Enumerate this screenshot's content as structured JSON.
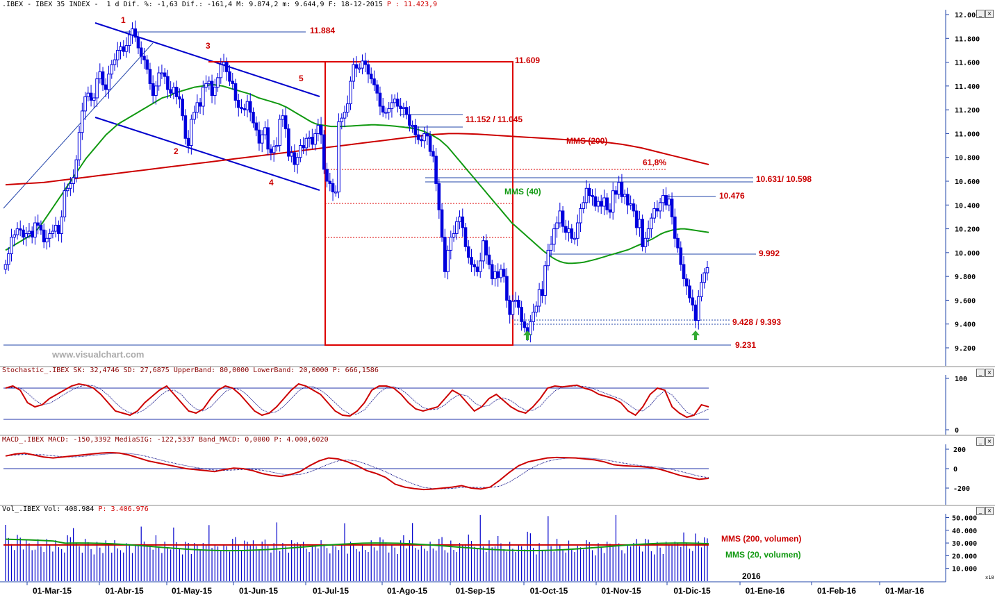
{
  "header": {
    "main": ".IBEX - IBEX 35 INDEX -  1 d Dif. %: -1,63 Dif.: -161,4 M: 9.874,2 m: 9.644,9 F: 18-12-2015",
    "main_price": " P : 11.423,9",
    "stoch": "Stochastic_.IBEX SK: 32,4746 SD: 27,6875 UpperBand: 80,0000 LowerBand: 20,0000 P: 666,1586",
    "macd": "MACD_.IBEX MACD: -150,3392 MediaSIG: -122,5337 Band_MACD: 0,0000 P: 4.000,6020",
    "vol": "Vol_.IBEX Vol: 408.984",
    "vol_price": " P: 3.406.976"
  },
  "watermark": "www.visualchart.com",
  "price_axis": [
    "12.000",
    "11.800",
    "11.600",
    "11.400",
    "11.200",
    "11.000",
    "10.800",
    "10.600",
    "10.400",
    "10.200",
    "10.000",
    "9.800",
    "9.600",
    "9.400",
    "9.200"
  ],
  "stoch_axis": [
    "100",
    "0"
  ],
  "macd_axis": [
    "200",
    "0",
    "-200"
  ],
  "vol_axis": [
    "50.000",
    "40.000",
    "30.000",
    "20.000",
    "10.000"
  ],
  "vol_unit": "x10",
  "x_axis": [
    "01-Mar-15",
    "01-Abr-15",
    "01-May-15",
    "01-Jun-15",
    "01-Jul-15",
    "01-Ago-15",
    "01-Sep-15",
    "01-Oct-15",
    "01-Nov-15",
    "01-Dic-15",
    "01-Ene-16",
    "01-Feb-16",
    "01-Mar-16"
  ],
  "year_label": "2016",
  "annotations": {
    "level_11884": "11.884",
    "level_11609": "11.609",
    "level_11152": "11.152 / 11.045",
    "mms200": "MMS (200)",
    "fib": "61,8%",
    "level_10631": "10.631/ 10.598",
    "mms40": "MMS (40)",
    "level_10476": "10.476",
    "level_9992": "9.992",
    "level_9428": "9.428 / 9.393",
    "level_9231": "9.231",
    "wave1": "1",
    "wave2": "2",
    "wave3": "3",
    "wave4": "4",
    "wave5": "5",
    "vol_mms200": "MMS (200, volumen)",
    "vol_mms20": "MMS (20, volumen)"
  },
  "colors": {
    "candle": "#0000dd",
    "mms200": "#cc0000",
    "mms40": "#119911",
    "levels": "#2244aa",
    "annot": "#cc0000",
    "stoch_k": "#cc0000",
    "stoch_d": "#000080"
  },
  "chart_data": {
    "type": "candlestick",
    "title": "IBEX 35 INDEX",
    "ylim": [
      9150,
      12050
    ],
    "ticks_per_month": 21,
    "start_month": "Feb-15",
    "closes": [
      9900,
      9990,
      10130,
      10150,
      10200,
      10190,
      10130,
      10160,
      10180,
      10130,
      10250,
      10230,
      10190,
      10090,
      10120,
      10160,
      10180,
      10230,
      10160,
      10300,
      10520,
      10540,
      10580,
      10630,
      10780,
      11010,
      11190,
      11310,
      11340,
      11280,
      11300,
      11460,
      11520,
      11410,
      11370,
      11500,
      11580,
      11620,
      11700,
      11730,
      11690,
      11740,
      11830,
      11880,
      11810,
      11720,
      11650,
      11620,
      11540,
      11420,
      11320,
      11400,
      11510,
      11510,
      11480,
      11370,
      11340,
      11390,
      11310,
      11290,
      11150,
      10960,
      10900,
      11120,
      11180,
      11260,
      11230,
      11390,
      11420,
      11440,
      11320,
      11390,
      11470,
      11580,
      11600,
      11520,
      11440,
      11420,
      11280,
      11220,
      11210,
      11200,
      11270,
      11180,
      11090,
      11030,
      10920,
      10990,
      11050,
      10870,
      10840,
      10890,
      10900,
      11120,
      11150,
      11040,
      10810,
      10840,
      10740,
      10800,
      10900,
      10880,
      10960,
      10970,
      10910,
      11000,
      11070,
      10990,
      10700,
      10600,
      10580,
      10510,
      10510,
      11100,
      11130,
      11180,
      11250,
      11440,
      11580,
      11550,
      11550,
      11610,
      11580,
      11500,
      11460,
      11410,
      11340,
      11230,
      11180,
      11180,
      11210,
      11260,
      11290,
      11230,
      11210,
      11220,
      11160,
      11070,
      11070,
      10990,
      10950,
      10940,
      11000,
      10980,
      10850,
      10810,
      10580,
      10360,
      10130,
      9840,
      10020,
      10130,
      10160,
      10260,
      10300,
      10210,
      10050,
      9960,
      9900,
      9880,
      9840,
      9930,
      10100,
      9980,
      9900,
      9780,
      9840,
      9790,
      9860,
      9800,
      9600,
      9480,
      9590,
      9600,
      9540,
      9420,
      9370,
      9310,
      9420,
      9500,
      9550,
      9690,
      9640,
      9890,
      10020,
      10070,
      10200,
      10250,
      10350,
      10220,
      10170,
      10200,
      10120,
      10120,
      10250,
      10370,
      10420,
      10540,
      10480,
      10470,
      10390,
      10430,
      10390,
      10460,
      10360,
      10340,
      10520,
      10490,
      10590,
      10470,
      10490,
      10400,
      10410,
      10350,
      10210,
      10280,
      10050,
      10120,
      10200,
      10290,
      10370,
      10350,
      10420,
      10480,
      10400,
      10450,
      10300,
      10120,
      10040,
      9900,
      9780,
      9720,
      9620,
      9560,
      9430,
      9630,
      9750,
      9830,
      9874
    ],
    "mms40": [
      10020,
      10040,
      10060,
      10080,
      10100,
      10120,
      10140,
      10170,
      10200,
      10240,
      10290,
      10340,
      10390,
      10440,
      10490,
      10540,
      10590,
      10640,
      10690,
      10740,
      10790,
      10830,
      10870,
      10910,
      10950,
      10990,
      11020,
      11050,
      11080,
      11100,
      11120,
      11140,
      11160,
      11180,
      11200,
      11220,
      11240,
      11260,
      11280,
      11300,
      11310,
      11320,
      11340,
      11350,
      11360,
      11370,
      11380,
      11390,
      11395,
      11400,
      11405,
      11410,
      11410,
      11405,
      11400,
      11390,
      11380,
      11370,
      11360,
      11350,
      11340,
      11330,
      11315,
      11300,
      11290,
      11280,
      11270,
      11260,
      11250,
      11235,
      11220,
      11200,
      11180,
      11160,
      11140,
      11120,
      11100,
      11085,
      11075,
      11070,
      11065,
      11060,
      11060,
      11060,
      11060,
      11062,
      11064,
      11066,
      11068,
      11070,
      11072,
      11074,
      11074,
      11072,
      11070,
      11068,
      11065,
      11062,
      11058,
      11055,
      11050,
      11045,
      11040,
      11030,
      11020,
      11005,
      10990,
      10970,
      10950,
      10920,
      10890,
      10850,
      10810,
      10770,
      10730,
      10690,
      10650,
      10610,
      10570,
      10530,
      10490,
      10450,
      10410,
      10370,
      10330,
      10290,
      10250,
      10220,
      10190,
      10160,
      10130,
      10100,
      10070,
      10040,
      10010,
      9985,
      9960,
      9940,
      9925,
      9915,
      9910,
      9910,
      9912,
      9915,
      9920,
      9928,
      9936,
      9945,
      9955,
      9965,
      9975,
      9985,
      9995,
      10005,
      10015,
      10025,
      10040,
      10055,
      10070,
      10085,
      10100,
      10115,
      10135,
      10155,
      10170,
      10180,
      10190,
      10195,
      10200,
      10200,
      10195,
      10190,
      10185,
      10180,
      10175,
      10170
    ],
    "mms200": [
      10570,
      10575,
      10580,
      10585,
      10590,
      10600,
      10610,
      10620,
      10630,
      10640,
      10650,
      10660,
      10670,
      10680,
      10690,
      10700,
      10710,
      10720,
      10730,
      10740,
      10750,
      10760,
      10770,
      10780,
      10790,
      10800,
      10810,
      10820,
      10830,
      10840,
      10850,
      10860,
      10870,
      10880,
      10890,
      10900,
      10910,
      10920,
      10930,
      10940,
      10950,
      10960,
      10970,
      10980,
      10990,
      10995,
      11000,
      11000,
      10998,
      10995,
      10990,
      10985,
      10980,
      10975,
      10970,
      10965,
      10960,
      10955,
      10950,
      10945,
      10940,
      10935,
      10930,
      10920,
      10910,
      10895,
      10880,
      10860,
      10840,
      10820,
      10800,
      10780,
      10760,
      10740
    ],
    "stoch_k": [
      75,
      80,
      70,
      40,
      30,
      35,
      50,
      60,
      70,
      80,
      85,
      82,
      75,
      60,
      40,
      20,
      15,
      10,
      20,
      40,
      55,
      70,
      80,
      60,
      40,
      20,
      15,
      25,
      50,
      70,
      80,
      75,
      60,
      40,
      20,
      10,
      15,
      30,
      50,
      70,
      85,
      80,
      70,
      60,
      40,
      20,
      10,
      8,
      20,
      40,
      70,
      80,
      80,
      75,
      60,
      40,
      25,
      20,
      25,
      30,
      50,
      70,
      60,
      40,
      20,
      30,
      50,
      60,
      45,
      30,
      20,
      15,
      30,
      50,
      75,
      80,
      78,
      80,
      82,
      75,
      70,
      60,
      55,
      50,
      40,
      20,
      10,
      30,
      60,
      75,
      70,
      30,
      15,
      5,
      10,
      35,
      30
    ],
    "macd": [
      130,
      150,
      160,
      140,
      120,
      110,
      120,
      130,
      140,
      150,
      160,
      165,
      160,
      140,
      110,
      80,
      60,
      40,
      20,
      0,
      -10,
      -20,
      -30,
      -10,
      5,
      0,
      -20,
      -50,
      -70,
      -80,
      -60,
      -30,
      30,
      80,
      110,
      100,
      70,
      30,
      -20,
      -50,
      -90,
      -160,
      -190,
      -205,
      -215,
      -210,
      -200,
      -190,
      -175,
      -200,
      -210,
      -190,
      -120,
      -40,
      30,
      70,
      90,
      110,
      115,
      112,
      110,
      100,
      90,
      70,
      40,
      30,
      25,
      20,
      10,
      -10,
      -40,
      -70,
      -90,
      -110,
      -100
    ],
    "volume": [
      35,
      33,
      32,
      31,
      34,
      36,
      30,
      29,
      30,
      28,
      33,
      32,
      30,
      29,
      31,
      30,
      28,
      29,
      27,
      29,
      30,
      35,
      38,
      30,
      28,
      29,
      27,
      30,
      31,
      29,
      28,
      30,
      29,
      28,
      30,
      31,
      27,
      29,
      26,
      28,
      30,
      29,
      31,
      28,
      27,
      29,
      30,
      28,
      29,
      31,
      33,
      35,
      30,
      28,
      29,
      27,
      30,
      38,
      31,
      29,
      28,
      30,
      33,
      27,
      28,
      30,
      29,
      27,
      29,
      30,
      35,
      28,
      30,
      31,
      27,
      29,
      28,
      30
    ],
    "vol_mms20": 27,
    "vol_mms200": 28.5
  }
}
